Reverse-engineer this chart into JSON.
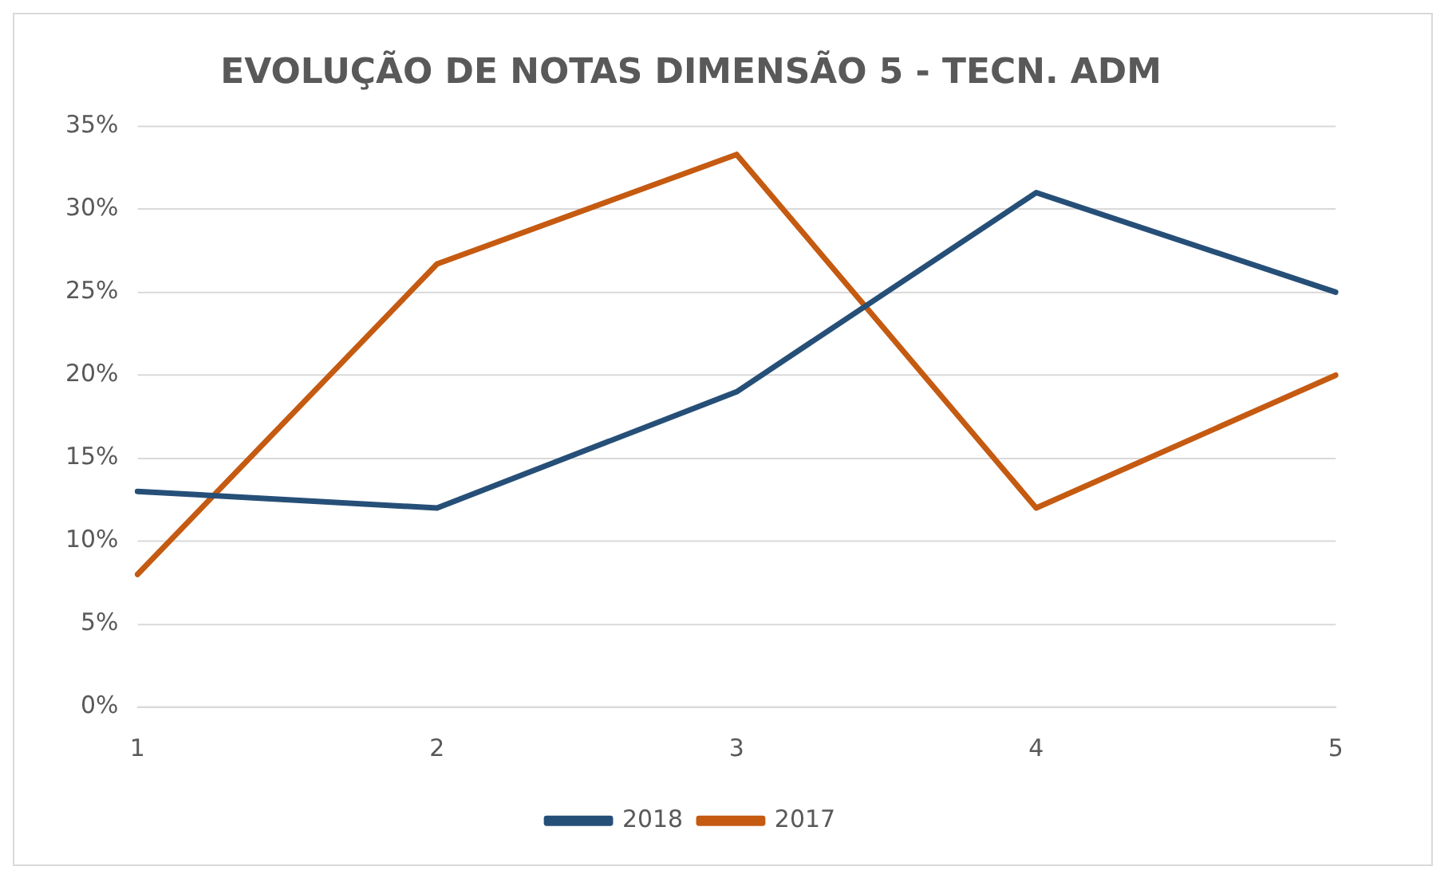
{
  "chart_data": {
    "type": "line",
    "title": "EVOLUÇÃO DE NOTAS DIMENSÃO 5 - TECN. ADM",
    "categories": [
      "1",
      "2",
      "3",
      "4",
      "5"
    ],
    "series": [
      {
        "name": "2018",
        "color": "#264f78",
        "values": [
          13,
          12,
          19,
          31,
          25
        ]
      },
      {
        "name": "2017",
        "color": "#c55a11",
        "values": [
          8,
          26.7,
          33.3,
          12,
          20
        ]
      }
    ],
    "ylim": [
      0,
      35
    ],
    "yticks": [
      {
        "value": 0,
        "label": "0%"
      },
      {
        "value": 5,
        "label": "5%"
      },
      {
        "value": 10,
        "label": "10%"
      },
      {
        "value": 15,
        "label": "15%"
      },
      {
        "value": 20,
        "label": "20%"
      },
      {
        "value": 25,
        "label": "25%"
      },
      {
        "value": 30,
        "label": "30%"
      },
      {
        "value": 35,
        "label": "35%"
      }
    ],
    "grid": "y",
    "legend": "bottom",
    "marker": "none",
    "line_style": "solid"
  }
}
